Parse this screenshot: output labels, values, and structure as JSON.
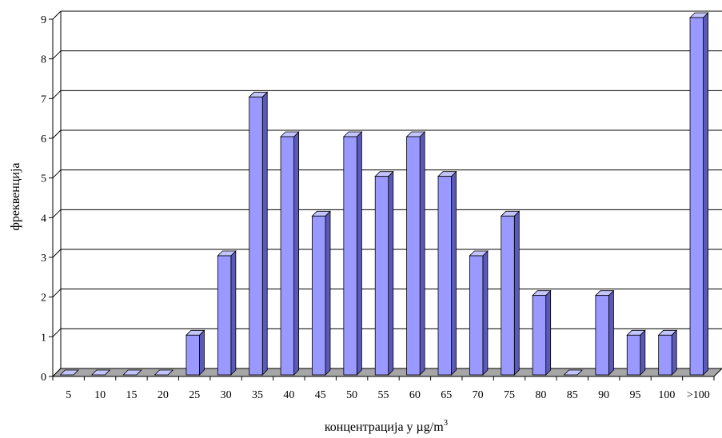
{
  "chart_data": {
    "type": "bar",
    "title": "",
    "xlabel": "концентрација у µg/m",
    "xlabel_superscript": "3",
    "ylabel": "фреквенција",
    "categories": [
      "5",
      "10",
      "15",
      "20",
      "25",
      "30",
      "35",
      "40",
      "45",
      "50",
      "55",
      "60",
      "65",
      "70",
      "75",
      "80",
      "85",
      "90",
      "95",
      "100",
      ">100"
    ],
    "values": [
      0,
      0,
      0,
      0,
      1,
      3,
      7,
      6,
      4,
      6,
      5,
      6,
      5,
      3,
      4,
      2,
      0,
      2,
      1,
      1,
      9
    ],
    "ylim": [
      0,
      9
    ],
    "yticks": [
      0,
      1,
      2,
      3,
      4,
      5,
      6,
      7,
      8,
      9
    ],
    "grid": true,
    "legend": "none",
    "colors": {
      "bar_front": "#9999ff",
      "bar_side": "#5a5ab8",
      "bar_top": "#c4c4ff",
      "bar_stroke": "#000000",
      "floor": "#a6a6a6",
      "grid": "#000000"
    }
  }
}
